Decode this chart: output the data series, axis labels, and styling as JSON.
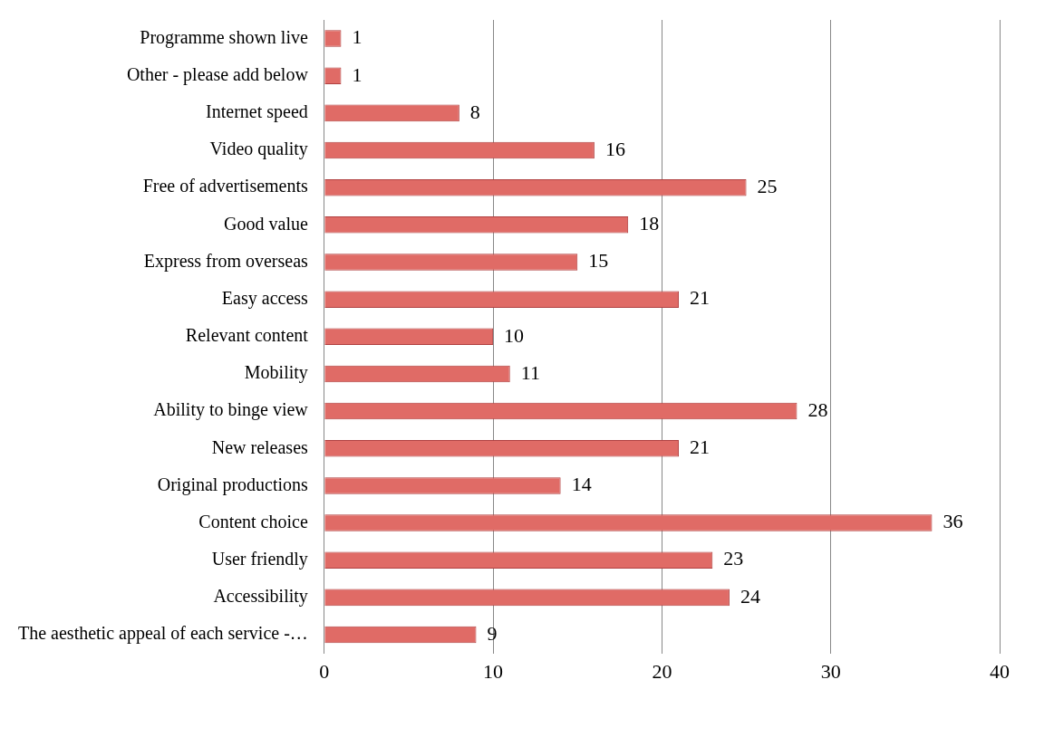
{
  "chart_data": {
    "type": "bar",
    "orientation": "horizontal",
    "categories": [
      "Programme shown live",
      "Other - please add below",
      "Internet speed",
      "Video quality",
      "Free of advertisements",
      "Good value",
      "Express from overseas",
      "Easy access",
      "Relevant content",
      "Mobility",
      "Ability to binge view",
      "New releases",
      "Original productions",
      "Content choice",
      "User friendly",
      "Accessibility",
      "The aesthetic appeal of each service -…"
    ],
    "values": [
      1,
      1,
      8,
      16,
      25,
      18,
      15,
      21,
      10,
      11,
      28,
      21,
      14,
      36,
      23,
      24,
      9
    ],
    "color": "#e06b66",
    "xlim": [
      0,
      40
    ],
    "xticks": [
      0,
      10,
      20,
      30,
      40
    ],
    "grid": "x",
    "legend": false,
    "data_labels": true
  }
}
